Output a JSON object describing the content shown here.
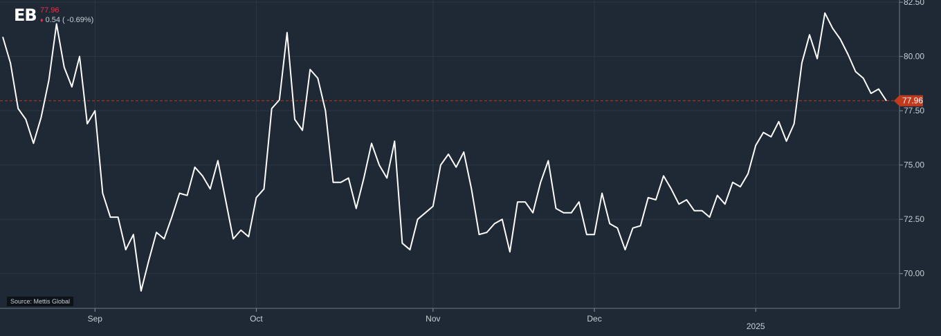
{
  "header": {
    "logo": "EB",
    "price": "77.96",
    "change": "0.54 ( -0.69%)"
  },
  "source": "Source: Mettis Global",
  "colors": {
    "background": "#1e2935",
    "line": "#ffffff",
    "down": "#e8344c",
    "last_marker": "#c23a1e",
    "grid": "#2b3743"
  },
  "chart_data": {
    "type": "line",
    "ylim": [
      68.4,
      82.6
    ],
    "yticks": [
      70.0,
      72.5,
      75.0,
      77.5,
      80.0,
      82.5
    ],
    "ytick_labels": [
      "70.00",
      "72.50",
      "75.00",
      "77.50",
      "80.00",
      "82.50"
    ],
    "last_value": 77.96,
    "last_label": "77.96",
    "xticks": [
      {
        "label": "Sep",
        "index": 12
      },
      {
        "label": "Oct",
        "index": 33
      },
      {
        "label": "Nov",
        "index": 56
      },
      {
        "label": "Dec",
        "index": 77
      },
      {
        "label": "2025",
        "index": 98
      }
    ],
    "series": [
      {
        "values": [
          80.9,
          79.7,
          77.6,
          77.1,
          76.0,
          77.2,
          78.9,
          81.5,
          79.5,
          78.6,
          80.0,
          76.9,
          77.5,
          73.7,
          72.6,
          72.6,
          71.1,
          71.8,
          69.2,
          70.6,
          71.9,
          71.6,
          72.6,
          73.7,
          73.6,
          74.9,
          74.5,
          73.9,
          75.2,
          73.4,
          71.6,
          72.0,
          71.7,
          73.5,
          73.9,
          77.6,
          78.0,
          81.1,
          77.1,
          76.6,
          79.4,
          79.0,
          77.5,
          74.2,
          74.2,
          74.4,
          73.0,
          74.4,
          76.0,
          75.0,
          74.4,
          76.1,
          71.4,
          71.1,
          72.5,
          72.8,
          73.1,
          75.0,
          75.5,
          74.9,
          75.6,
          73.9,
          71.8,
          71.9,
          72.3,
          72.5,
          71.0,
          73.3,
          73.3,
          72.8,
          74.2,
          75.2,
          73.0,
          72.8,
          72.8,
          73.3,
          71.8,
          71.8,
          73.7,
          72.3,
          72.1,
          71.1,
          72.1,
          72.2,
          73.5,
          73.4,
          74.5,
          73.9,
          73.2,
          73.4,
          72.9,
          72.9,
          72.6,
          73.6,
          73.2,
          74.2,
          74.0,
          74.6,
          75.9,
          76.5,
          76.3,
          77.0,
          76.1,
          76.9,
          79.7,
          81.0,
          79.9,
          82.0,
          81.3,
          80.8,
          80.1,
          79.3,
          79.0,
          78.3,
          78.5,
          77.96
        ]
      }
    ]
  }
}
